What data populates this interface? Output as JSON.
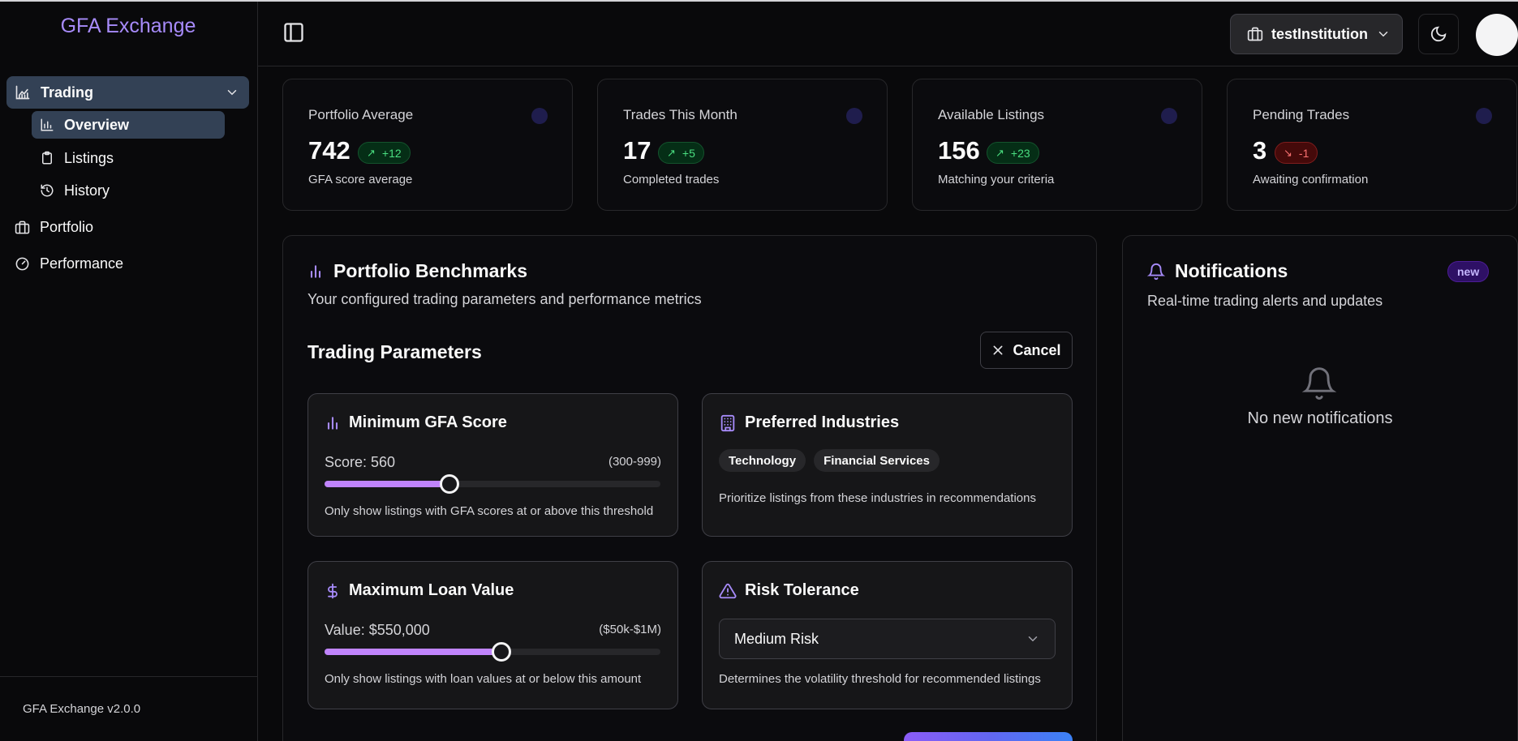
{
  "sidebar": {
    "brand": "GFA Exchange",
    "group": {
      "label": "Trading"
    },
    "subitems": [
      {
        "label": "Overview"
      },
      {
        "label": "Listings"
      },
      {
        "label": "History"
      }
    ],
    "items": [
      {
        "label": "Portfolio"
      },
      {
        "label": "Performance"
      }
    ],
    "version": "GFA Exchange v2.0.0"
  },
  "topbar": {
    "institution": "testInstitution"
  },
  "stats": [
    {
      "title": "Portfolio Average",
      "value": "742",
      "delta": "+12",
      "trend": "up",
      "sub": "GFA score average"
    },
    {
      "title": "Trades This Month",
      "value": "17",
      "delta": "+5",
      "trend": "up",
      "sub": "Completed trades"
    },
    {
      "title": "Available Listings",
      "value": "156",
      "delta": "+23",
      "trend": "up",
      "sub": "Matching your criteria"
    },
    {
      "title": "Pending Trades",
      "value": "3",
      "delta": "-1",
      "trend": "down",
      "sub": "Awaiting confirmation"
    }
  ],
  "benchmarks": {
    "title": "Portfolio Benchmarks",
    "description": "Your configured trading parameters and performance metrics",
    "params_title": "Trading Parameters",
    "cancel_label": "Cancel",
    "min_score": {
      "title": "Minimum GFA Score",
      "label": "Score: 560",
      "range": "(300-999)",
      "min": 300,
      "max": 999,
      "value": 560,
      "help": "Only show listings with GFA scores at or above this threshold"
    },
    "industries": {
      "title": "Preferred Industries",
      "chips": [
        "Technology",
        "Financial Services"
      ],
      "help": "Prioritize listings from these industries in recommendations"
    },
    "max_loan": {
      "title": "Maximum Loan Value",
      "label": "Value: $550,000",
      "range": "($50k-$1M)",
      "min": 50000,
      "max": 1000000,
      "value": 550000,
      "help": "Only show listings with loan values at or below this amount"
    },
    "risk": {
      "title": "Risk Tolerance",
      "selected": "Medium Risk",
      "help": "Determines the volatility threshold for recommended listings"
    }
  },
  "notifications": {
    "title": "Notifications",
    "badge": "new",
    "description": "Real-time trading alerts and updates",
    "empty": "No new notifications"
  },
  "colors": {
    "accent": "#a78bfa",
    "slider_fill": "#c084fc",
    "up": "#4ade80",
    "down": "#f87171"
  }
}
